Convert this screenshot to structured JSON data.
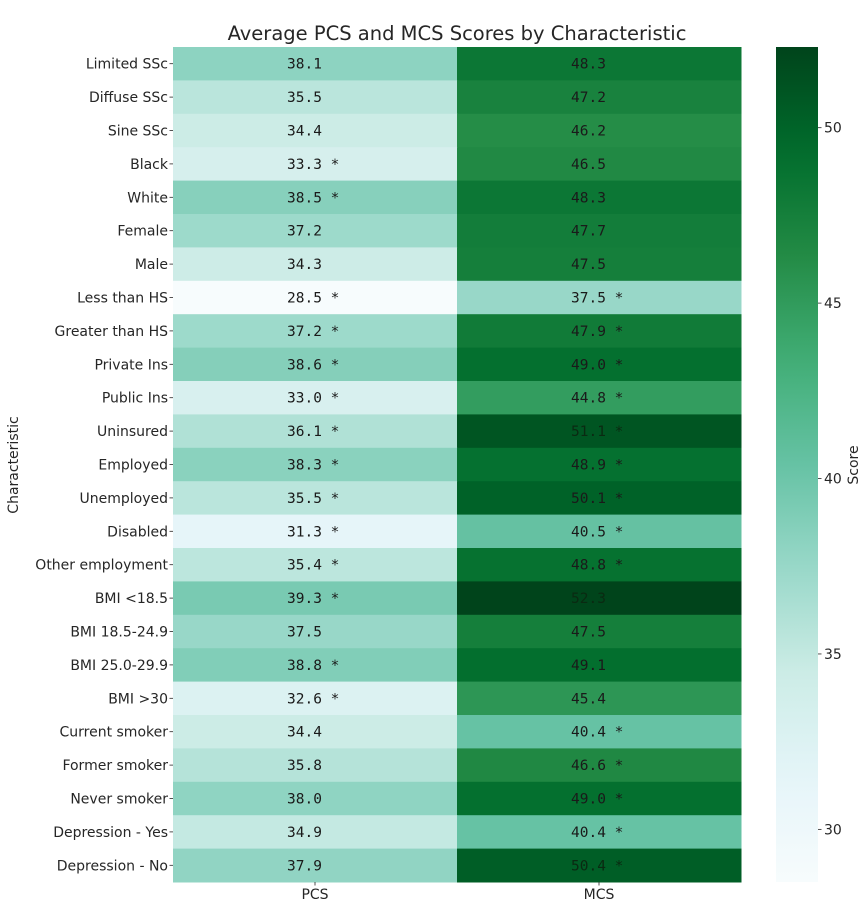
{
  "chart_data": {
    "type": "heatmap",
    "title": "Average PCS and MCS Scores by Characteristic",
    "xlabel": "",
    "ylabel": "Characteristic",
    "colorbar_label": "Score",
    "colormap": "BuGn",
    "vmin": 28.5,
    "vmax": 52.3,
    "colorbar_ticks": [
      30,
      35,
      40,
      45,
      50
    ],
    "columns": [
      "PCS",
      "MCS"
    ],
    "rows": [
      {
        "label": "Limited SSc",
        "values": [
          38.1,
          48.3
        ],
        "annotations": [
          "38.1",
          "48.3"
        ]
      },
      {
        "label": "Diffuse SSc",
        "values": [
          35.5,
          47.2
        ],
        "annotations": [
          "35.5",
          "47.2"
        ]
      },
      {
        "label": "Sine SSc",
        "values": [
          34.4,
          46.2
        ],
        "annotations": [
          "34.4",
          "46.2"
        ]
      },
      {
        "label": "Black",
        "values": [
          33.3,
          46.5
        ],
        "annotations": [
          "33.3 *",
          "46.5"
        ]
      },
      {
        "label": "White",
        "values": [
          38.5,
          48.3
        ],
        "annotations": [
          "38.5 *",
          "48.3"
        ]
      },
      {
        "label": "Female",
        "values": [
          37.2,
          47.7
        ],
        "annotations": [
          "37.2",
          "47.7"
        ]
      },
      {
        "label": "Male",
        "values": [
          34.3,
          47.5
        ],
        "annotations": [
          "34.3",
          "47.5"
        ]
      },
      {
        "label": "Less than HS",
        "values": [
          28.5,
          37.5
        ],
        "annotations": [
          "28.5 *",
          "37.5 *"
        ]
      },
      {
        "label": "Greater than HS",
        "values": [
          37.2,
          47.9
        ],
        "annotations": [
          "37.2 *",
          "47.9 *"
        ]
      },
      {
        "label": "Private Ins",
        "values": [
          38.6,
          49.0
        ],
        "annotations": [
          "38.6 *",
          "49.0 *"
        ]
      },
      {
        "label": "Public Ins",
        "values": [
          33.0,
          44.8
        ],
        "annotations": [
          "33.0 *",
          "44.8 *"
        ]
      },
      {
        "label": "Uninsured",
        "values": [
          36.1,
          51.1
        ],
        "annotations": [
          "36.1 *",
          "51.1 *"
        ]
      },
      {
        "label": "Employed",
        "values": [
          38.3,
          48.9
        ],
        "annotations": [
          "38.3 *",
          "48.9 *"
        ]
      },
      {
        "label": "Unemployed",
        "values": [
          35.5,
          50.1
        ],
        "annotations": [
          "35.5 *",
          "50.1 *"
        ]
      },
      {
        "label": "Disabled",
        "values": [
          31.3,
          40.5
        ],
        "annotations": [
          "31.3 *",
          "40.5 *"
        ]
      },
      {
        "label": "Other employment",
        "values": [
          35.4,
          48.8
        ],
        "annotations": [
          "35.4 *",
          "48.8 *"
        ]
      },
      {
        "label": "BMI <18.5",
        "values": [
          39.3,
          52.3
        ],
        "annotations": [
          "39.3 *",
          "52.3"
        ]
      },
      {
        "label": "BMI 18.5-24.9",
        "values": [
          37.5,
          47.5
        ],
        "annotations": [
          "37.5",
          "47.5"
        ]
      },
      {
        "label": "BMI 25.0-29.9",
        "values": [
          38.8,
          49.1
        ],
        "annotations": [
          "38.8 *",
          "49.1"
        ]
      },
      {
        "label": "BMI >30",
        "values": [
          32.6,
          45.4
        ],
        "annotations": [
          "32.6 *",
          "45.4"
        ]
      },
      {
        "label": "Current smoker",
        "values": [
          34.4,
          40.4
        ],
        "annotations": [
          "34.4",
          "40.4 *"
        ]
      },
      {
        "label": "Former smoker",
        "values": [
          35.8,
          46.6
        ],
        "annotations": [
          "35.8",
          "46.6 *"
        ]
      },
      {
        "label": "Never smoker",
        "values": [
          38.0,
          49.0
        ],
        "annotations": [
          "38.0",
          "49.0 *"
        ]
      },
      {
        "label": "Depression - Yes",
        "values": [
          34.9,
          40.4
        ],
        "annotations": [
          "34.9",
          "40.4 *"
        ]
      },
      {
        "label": "Depression - No",
        "values": [
          37.9,
          50.4
        ],
        "annotations": [
          "37.9",
          "50.4 *"
        ]
      }
    ],
    "grid": false,
    "legend": "colorbar-right"
  }
}
